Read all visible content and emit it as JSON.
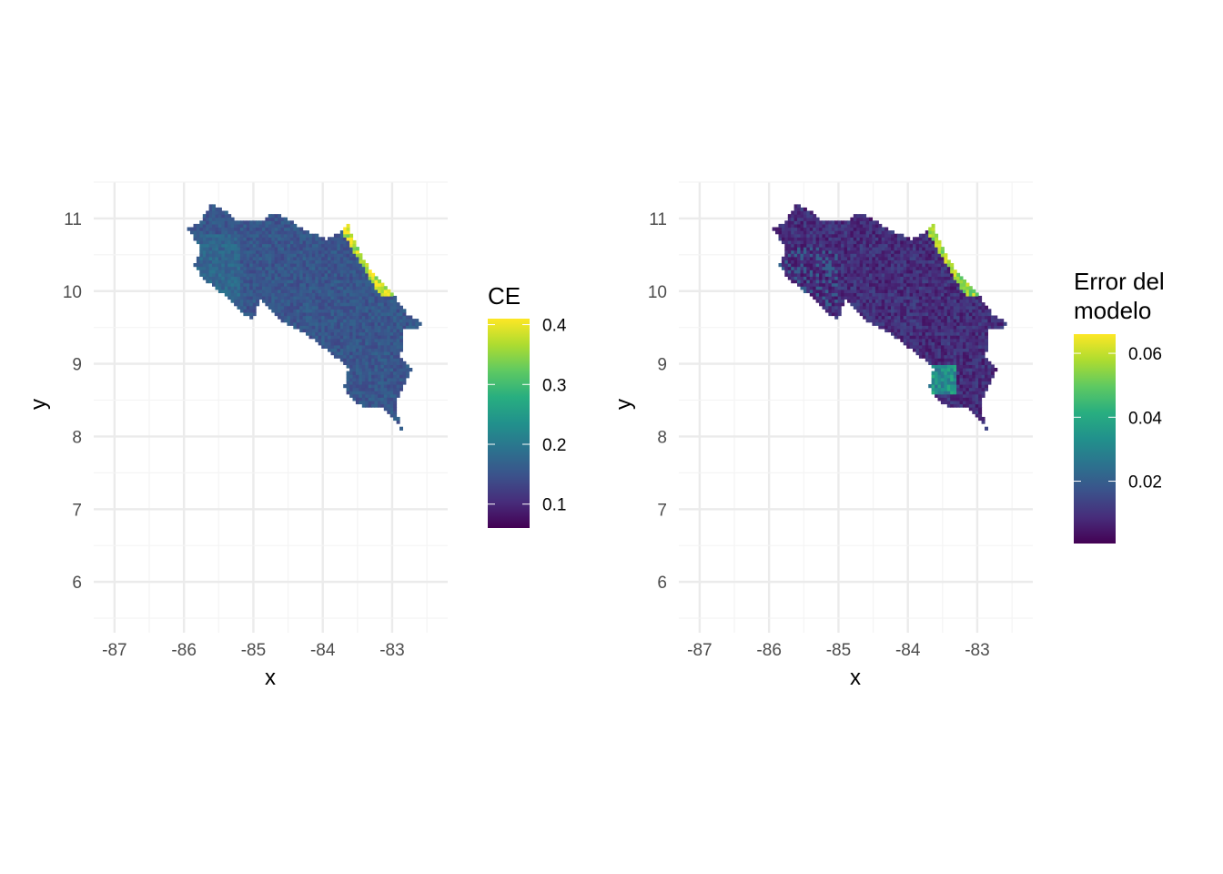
{
  "chart_data": [
    {
      "type": "heatmap",
      "title": "",
      "xlabel": "x",
      "ylabel": "y",
      "xlim": [
        -87.3,
        -82.2
      ],
      "ylim": [
        5.3,
        11.5
      ],
      "x_ticks": [
        -87,
        -86,
        -85,
        -84,
        -83
      ],
      "x_tick_labels": [
        "-87",
        "-86",
        "-85",
        "-84",
        "-83"
      ],
      "y_ticks": [
        6,
        7,
        8,
        9,
        10,
        11
      ],
      "y_tick_labels": [
        "6",
        "7",
        "8",
        "9",
        "10",
        "11"
      ],
      "grid": true,
      "fill_scale": "viridis",
      "legend": {
        "title": "CE",
        "placement": "right",
        "range": [
          0.06,
          0.41
        ],
        "breaks": [
          0.1,
          0.2,
          0.3,
          0.4
        ],
        "break_labels": [
          "0.1",
          "0.2",
          "0.3",
          "0.4"
        ]
      },
      "base_value": 0.15,
      "regions": [
        {
          "description": "Caribbean coastal strip",
          "value": 0.38
        },
        {
          "description": "Nicoya peninsula",
          "value": 0.17
        },
        {
          "description": "Osa peninsula",
          "value": 0.15
        }
      ]
    },
    {
      "type": "heatmap",
      "title": "",
      "xlabel": "x",
      "ylabel": "y",
      "xlim": [
        -87.3,
        -82.2
      ],
      "ylim": [
        5.3,
        11.5
      ],
      "x_ticks": [
        -87,
        -86,
        -85,
        -84,
        -83
      ],
      "x_tick_labels": [
        "-87",
        "-86",
        "-85",
        "-84",
        "-83"
      ],
      "y_ticks": [
        6,
        7,
        8,
        9,
        10,
        11
      ],
      "y_tick_labels": [
        "6",
        "7",
        "8",
        "9",
        "10",
        "11"
      ],
      "grid": true,
      "fill_scale": "viridis",
      "legend": {
        "title_lines": [
          "Error del",
          "modelo"
        ],
        "placement": "right",
        "range": [
          0.0005,
          0.066
        ],
        "breaks": [
          0.02,
          0.04,
          0.06
        ],
        "break_labels": [
          "0.02",
          "0.04",
          "0.06"
        ]
      },
      "base_value": 0.01,
      "regions": [
        {
          "description": "Caribbean coastal strip",
          "value": 0.055
        },
        {
          "description": "Southern Pacific coast",
          "value": 0.035
        },
        {
          "description": "Nicoya peninsula",
          "value": 0.018
        }
      ]
    }
  ],
  "colors": {
    "viridis": [
      "#440154",
      "#472d7b",
      "#3b528b",
      "#2c728e",
      "#21918c",
      "#28ae80",
      "#5ec962",
      "#addc30",
      "#fde725"
    ],
    "panel_background": "#ffffff",
    "grid_major": "#ebebeb",
    "grid_minor": "#f4f4f4"
  }
}
